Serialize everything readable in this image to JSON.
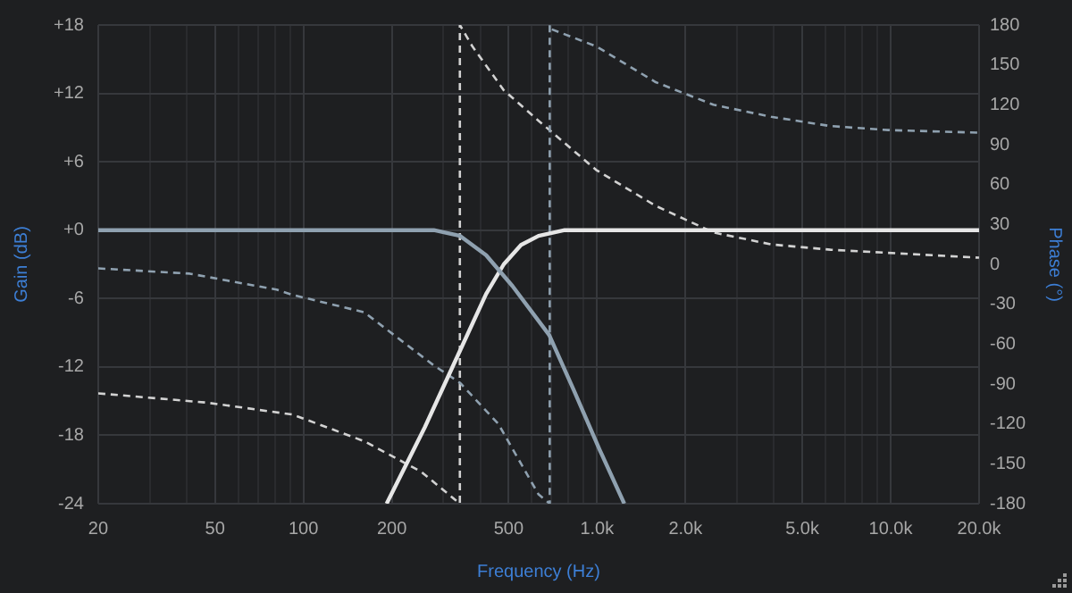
{
  "chart_data": {
    "type": "line",
    "xlabel": "Frequency (Hz)",
    "ylabel": "Gain (dB)",
    "y2label": "Phase (°)",
    "log": "x",
    "grid": true,
    "legend": false,
    "marker": "none",
    "xlim": [
      20,
      20000
    ],
    "xticks": [
      20,
      {
        "value": 30,
        "label": null
      },
      {
        "value": 40,
        "label": null
      },
      50,
      {
        "value": 60,
        "label": null
      },
      {
        "value": 70,
        "label": null
      },
      {
        "value": 80,
        "label": null
      },
      {
        "value": 90,
        "label": null
      },
      100,
      200,
      {
        "value": 300,
        "label": null
      },
      {
        "value": 400,
        "label": null
      },
      500,
      {
        "value": 600,
        "label": null
      },
      {
        "value": 700,
        "label": null
      },
      {
        "value": 800,
        "label": null
      },
      {
        "value": 900,
        "label": null
      },
      {
        "value": 1000,
        "label": "1.0k"
      },
      {
        "value": 2000,
        "label": "2.0k"
      },
      {
        "value": 3000,
        "label": null
      },
      {
        "value": 4000,
        "label": null
      },
      {
        "value": 5000,
        "label": "5.0k"
      },
      {
        "value": 6000,
        "label": null
      },
      {
        "value": 7000,
        "label": null
      },
      {
        "value": 8000,
        "label": null
      },
      {
        "value": 9000,
        "label": null
      },
      {
        "value": 10000,
        "label": "10.0k"
      },
      {
        "value": 20000,
        "label": "20.0k"
      }
    ],
    "ylim": [
      -24,
      18
    ],
    "yticks": [
      {
        "value": 18,
        "label": "+18"
      },
      {
        "value": 12,
        "label": "+12"
      },
      {
        "value": 6,
        "label": "+6"
      },
      {
        "value": 0,
        "label": "+0"
      },
      -6,
      -12,
      -18,
      -24
    ],
    "y2lim": [
      -180,
      180
    ],
    "y2ticks": [
      180,
      150,
      120,
      90,
      60,
      30,
      0,
      -30,
      -60,
      -90,
      -120,
      -150,
      -180
    ],
    "series": [
      {
        "color": "#8fa1b0",
        "line_style": "solid",
        "x": [
          20,
          200,
          278,
          341,
          419,
          515,
          687,
          832,
          1022,
          1238
        ],
        "values": [
          0,
          0,
          0,
          -0.5,
          -2.2,
          -4.9,
          -9.2,
          -14,
          -19.3,
          -24
        ]
      },
      {
        "color": "#e6e6e6",
        "line_style": "solid",
        "x": [
          192,
          259,
          341,
          419,
          481,
          551,
          632,
          776,
          955,
          20000
        ],
        "values": [
          -24,
          -17.3,
          -10.6,
          -5.6,
          -3,
          -1.3,
          -0.5,
          0,
          0,
          0
        ]
      },
      {
        "color": "#8fa1b0",
        "line_style": "dashed",
        "axis": "y2",
        "x": [
          20,
          41,
          81,
          92,
          161,
          278,
          341,
          461,
          632,
          690,
          690,
          696,
          993,
          1584,
          2490,
          3918,
          6237,
          9807,
          20000
        ],
        "values": [
          -3,
          -7,
          -19,
          -23,
          -36,
          -76,
          -89,
          -120,
          -173,
          -180,
          180,
          177,
          164,
          137,
          120,
          111,
          104,
          101,
          99
        ]
      },
      {
        "color": "#d2d2d2",
        "line_style": "dashed",
        "axis": "y2",
        "x": [
          20,
          47,
          92,
          161,
          252,
          341,
          341,
          376,
          481,
          632,
          993,
          1584,
          2490,
          3918,
          6237,
          20000
        ],
        "values": [
          -97,
          -104,
          -113,
          -133,
          -156,
          -180,
          180,
          164,
          131,
          108,
          71,
          44,
          24,
          15,
          11,
          5
        ]
      }
    ]
  }
}
